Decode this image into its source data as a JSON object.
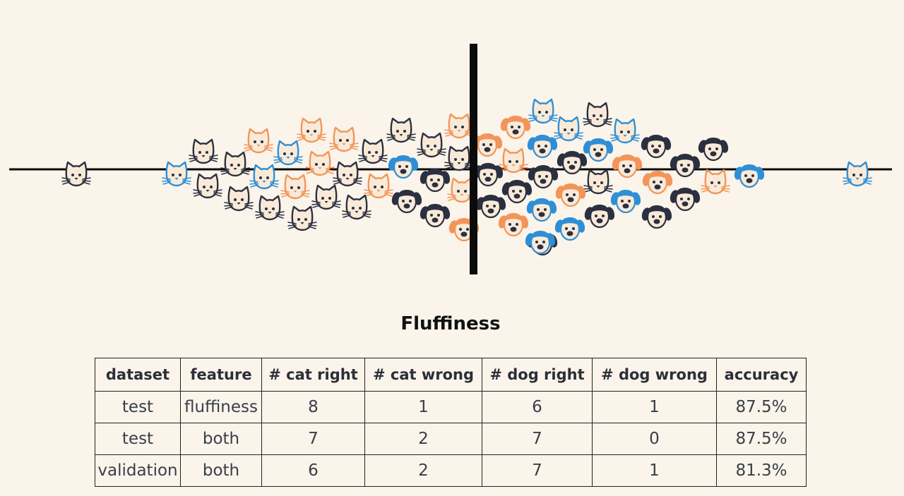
{
  "diagram": {
    "title": "Fluffiness",
    "palette": {
      "dark": "#2b3040",
      "orange": "#f2955a",
      "blue": "#2e8fd6",
      "face": "#f9ead8",
      "axis": "#0b0b0b"
    },
    "cats": [
      {
        "color": "dark"
      },
      {
        "color": "blue"
      },
      {
        "color": "dark"
      },
      {
        "color": "dark"
      },
      {
        "color": "dark"
      },
      {
        "color": "orange"
      },
      {
        "color": "orange"
      },
      {
        "color": "orange"
      },
      {
        "color": "blue"
      },
      {
        "color": "dark"
      },
      {
        "color": "blue"
      },
      {
        "color": "orange"
      },
      {
        "color": "orange"
      },
      {
        "color": "dark"
      },
      {
        "color": "dark"
      },
      {
        "color": "orange"
      },
      {
        "color": "dark"
      },
      {
        "color": "dark"
      },
      {
        "color": "orange"
      },
      {
        "color": "dark"
      },
      {
        "color": "orange"
      },
      {
        "color": "dark"
      },
      {
        "color": "dark"
      },
      {
        "color": "dark"
      },
      {
        "color": "orange"
      },
      {
        "color": "blue"
      },
      {
        "color": "dark"
      },
      {
        "color": "dark"
      },
      {
        "color": "blue"
      },
      {
        "color": "orange"
      },
      {
        "color": "dark"
      },
      {
        "color": "blue"
      },
      {
        "color": "blue"
      }
    ],
    "dogs": [
      {
        "color": "blue"
      },
      {
        "color": "dark"
      },
      {
        "color": "dark"
      },
      {
        "color": "dark"
      },
      {
        "color": "dark"
      },
      {
        "color": "orange"
      },
      {
        "color": "orange"
      },
      {
        "color": "dark"
      },
      {
        "color": "dark"
      },
      {
        "color": "orange"
      },
      {
        "color": "dark"
      },
      {
        "color": "blue"
      },
      {
        "color": "dark"
      },
      {
        "color": "dark"
      },
      {
        "color": "orange"
      },
      {
        "color": "orange"
      },
      {
        "color": "blue"
      },
      {
        "color": "blue"
      },
      {
        "color": "blue"
      },
      {
        "color": "blue"
      },
      {
        "color": "dark"
      },
      {
        "color": "orange"
      },
      {
        "color": "dark"
      },
      {
        "color": "blue"
      },
      {
        "color": "orange"
      },
      {
        "color": "dark"
      },
      {
        "color": "dark"
      },
      {
        "color": "dark"
      },
      {
        "color": "dark"
      },
      {
        "color": "blue"
      }
    ]
  },
  "table": {
    "headers": [
      "dataset",
      "feature",
      "# cat right",
      "# cat wrong",
      "# dog right",
      "# dog wrong",
      "accuracy"
    ],
    "rows": [
      [
        "test",
        "fluffiness",
        "8",
        "1",
        "6",
        "1",
        "87.5%"
      ],
      [
        "test",
        "both",
        "7",
        "2",
        "7",
        "0",
        "87.5%"
      ],
      [
        "validation",
        "both",
        "6",
        "2",
        "7",
        "1",
        "81.3%"
      ]
    ]
  }
}
